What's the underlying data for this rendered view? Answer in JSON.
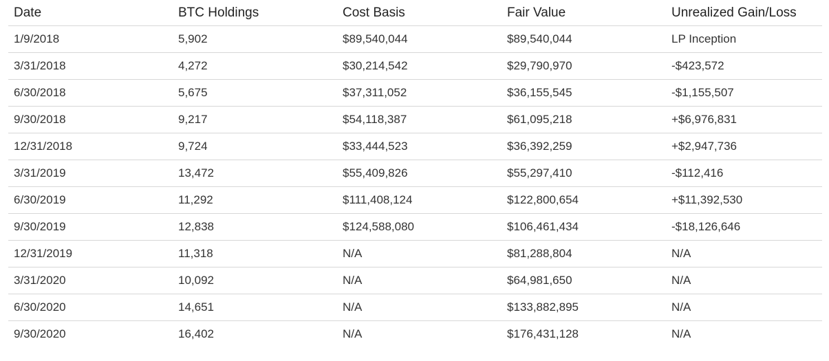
{
  "table": {
    "headers": [
      "Date",
      "BTC Holdings",
      "Cost Basis",
      "Fair Value",
      "Unrealized Gain/Loss"
    ],
    "rows": [
      [
        "1/9/2018",
        "5,902",
        "$89,540,044",
        "$89,540,044",
        "LP Inception"
      ],
      [
        "3/31/2018",
        "4,272",
        "$30,214,542",
        "$29,790,970",
        "-$423,572"
      ],
      [
        "6/30/2018",
        "5,675",
        "$37,311,052",
        "$36,155,545",
        "-$1,155,507"
      ],
      [
        "9/30/2018",
        "9,217",
        "$54,118,387",
        "$61,095,218",
        "+$6,976,831"
      ],
      [
        "12/31/2018",
        "9,724",
        "$33,444,523",
        "$36,392,259",
        "+$2,947,736"
      ],
      [
        "3/31/2019",
        "13,472",
        "$55,409,826",
        "$55,297,410",
        "-$112,416"
      ],
      [
        "6/30/2019",
        "11,292",
        "$111,408,124",
        "$122,800,654",
        "+$11,392,530"
      ],
      [
        "9/30/2019",
        "12,838",
        "$124,588,080",
        "$106,461,434",
        "-$18,126,646"
      ],
      [
        "12/31/2019",
        "11,318",
        "N/A",
        "$81,288,804",
        "N/A"
      ],
      [
        "3/31/2020",
        "10,092",
        "N/A",
        "$64,981,650",
        "N/A"
      ],
      [
        "6/30/2020",
        "14,651",
        "N/A",
        "$133,882,895",
        "N/A"
      ],
      [
        "9/30/2020",
        "16,402",
        "N/A",
        "$176,431,128",
        "N/A"
      ]
    ]
  }
}
